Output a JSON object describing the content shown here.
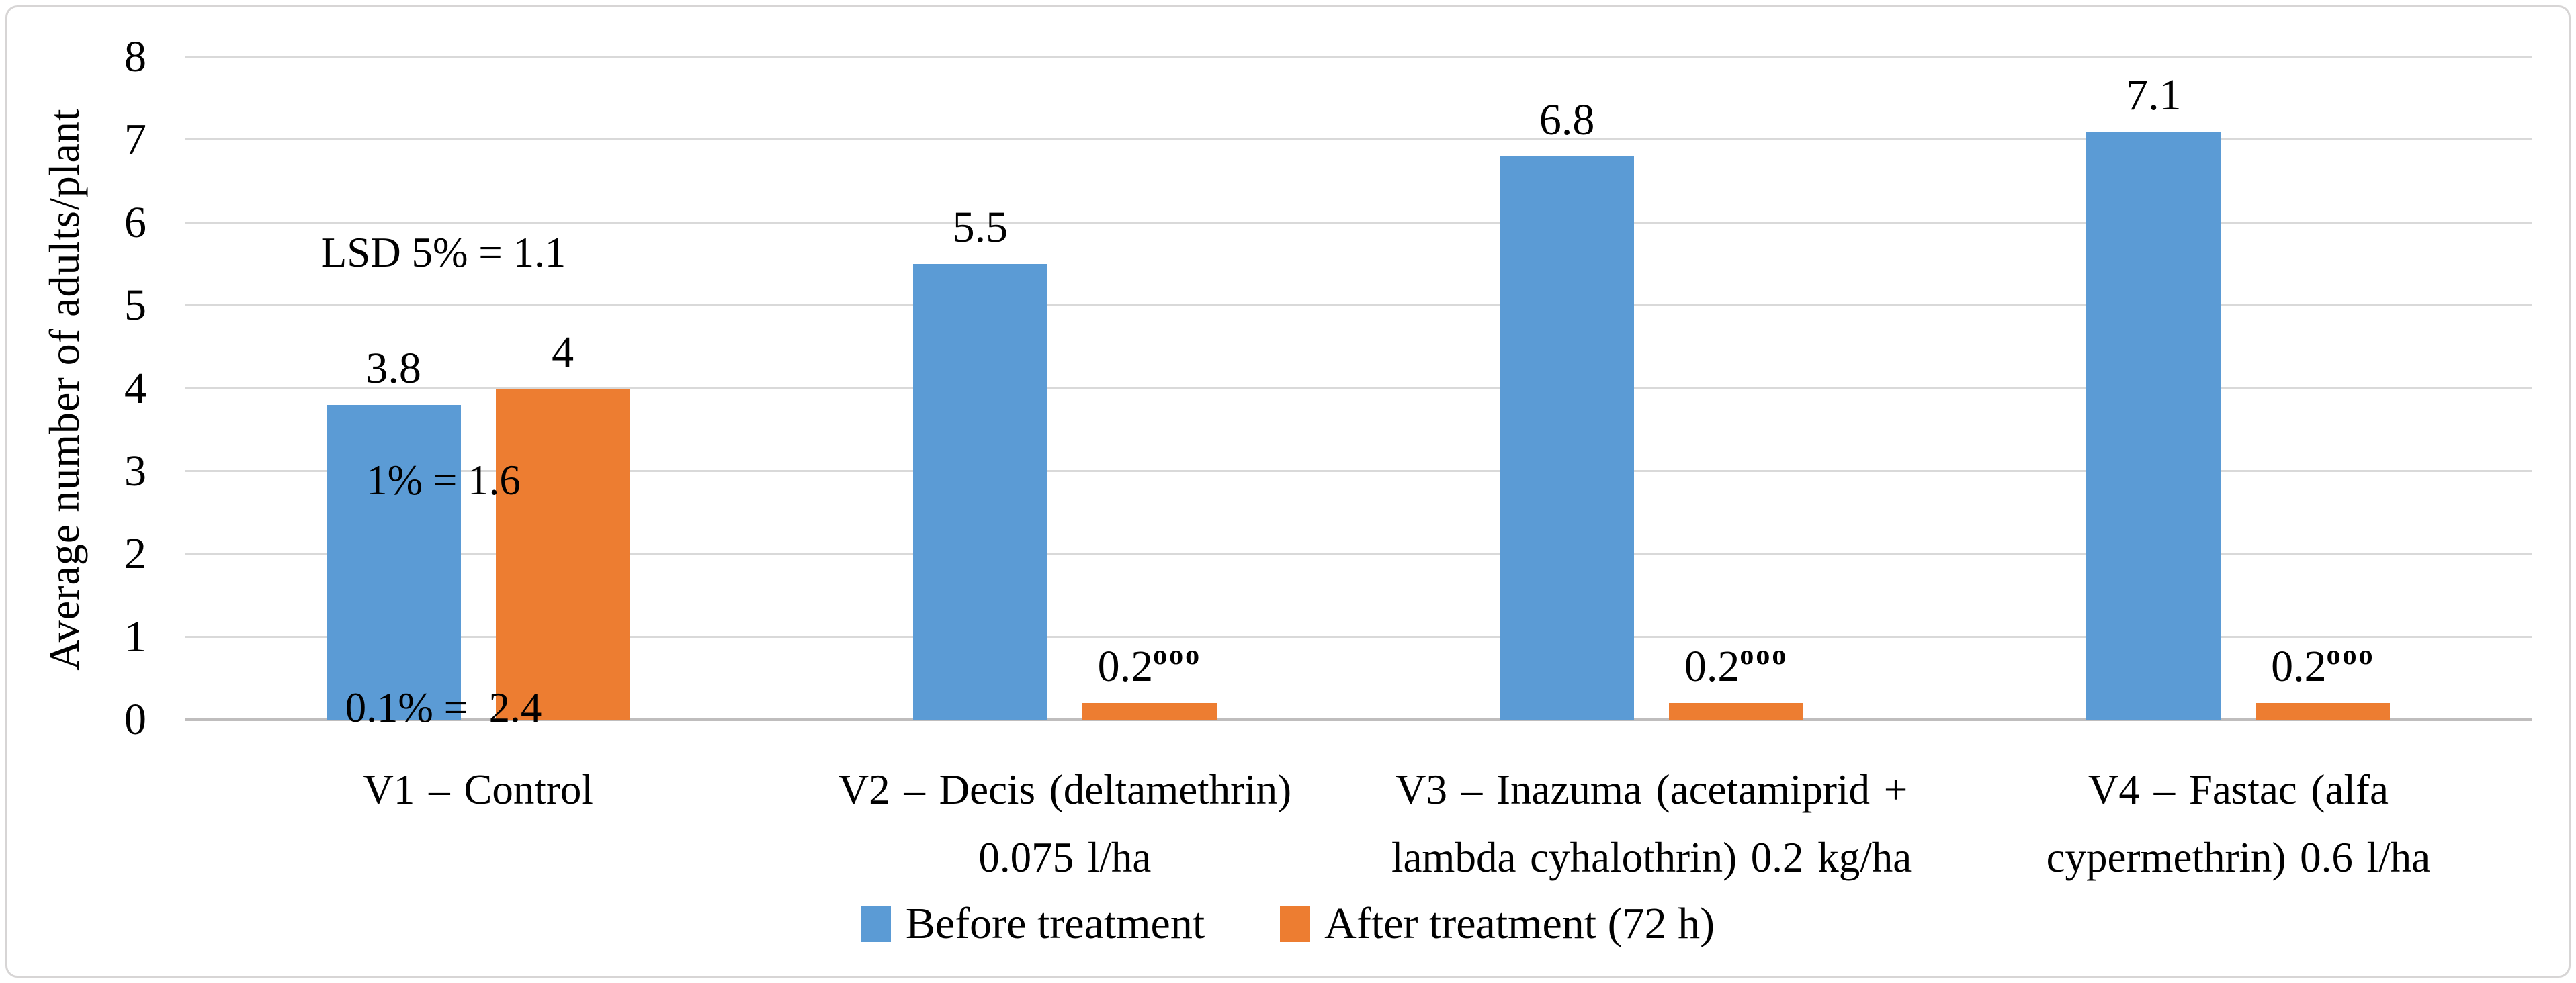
{
  "figure": {
    "y_axis_title": "Average number of adults/plant"
  },
  "legend": {
    "items": [
      {
        "label": "Before treatment",
        "color": "#5B9BD5"
      },
      {
        "label": "After treatment (72 h)",
        "color": "#ED7D31"
      }
    ]
  },
  "colors": {
    "before_blue": "#5B9BD5",
    "after_orange": "#ED7D31",
    "gridline": "#D9D9D9",
    "axis_line": "#BFBDBD",
    "frame_border": "#D7D5D5",
    "text": "#000000"
  },
  "chart_data": {
    "type": "bar",
    "title": "",
    "xlabel": "",
    "ylabel": "Average number of adults/plant",
    "ylim": [
      0,
      8
    ],
    "y_ticks": [
      0,
      1,
      2,
      3,
      4,
      5,
      6,
      7,
      8
    ],
    "grid": true,
    "legend_position": "bottom",
    "annotation_lines": [
      "LSD 5% = 1.1",
      "1% = 1.6",
      "0.1% =  2.4"
    ],
    "categories": [
      {
        "label_lines": [
          "V1 – Control"
        ]
      },
      {
        "label_lines": [
          "V2 – Decis (deltamethrin)",
          "0.075 l/ha"
        ]
      },
      {
        "label_lines": [
          "V3 – Inazuma (acetamiprid +",
          "lambda cyhalothrin) 0.2 kg/ha"
        ]
      },
      {
        "label_lines": [
          "V4 – Fastac (alfa",
          "cypermethrin) 0.6 l/ha"
        ]
      }
    ],
    "series": [
      {
        "name": "Before treatment",
        "color": "#5B9BD5",
        "values": [
          3.8,
          5.5,
          6.8,
          7.1
        ],
        "data_labels": [
          {
            "text": "3.8"
          },
          {
            "text": "5.5"
          },
          {
            "text": "6.8"
          },
          {
            "text": "7.1"
          }
        ]
      },
      {
        "name": "After treatment (72 h)",
        "color": "#ED7D31",
        "values": [
          4,
          0.2,
          0.2,
          0.2
        ],
        "data_labels": [
          {
            "text": "4"
          },
          {
            "text": "0.2",
            "sup": "ooo"
          },
          {
            "text": "0.2",
            "sup": "ooo"
          },
          {
            "text": "0.2",
            "sup": "ooo"
          }
        ]
      }
    ]
  }
}
